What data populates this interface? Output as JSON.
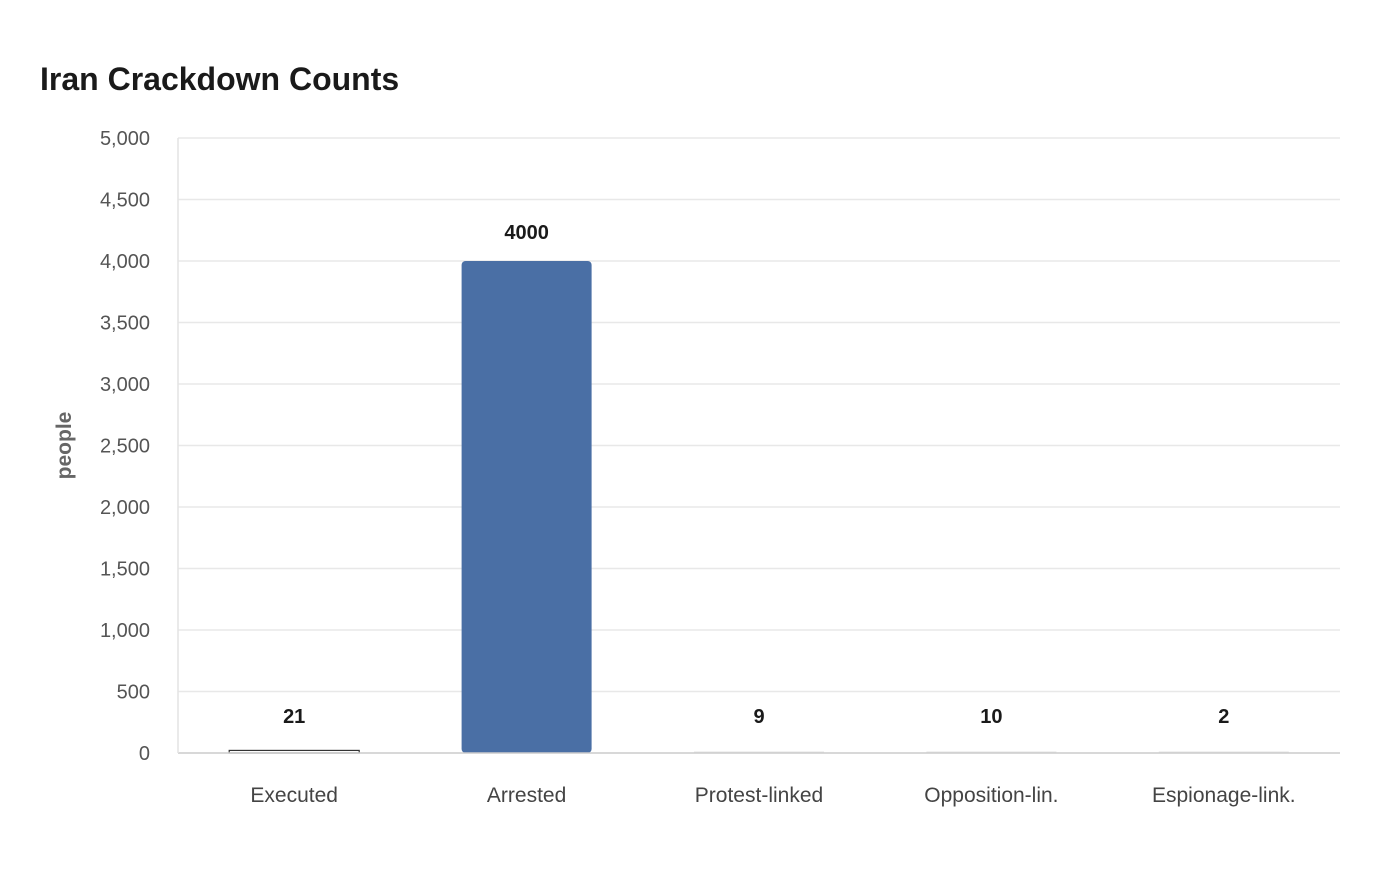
{
  "chart_data": {
    "type": "bar",
    "title": "Iran Crackdown Counts",
    "xlabel": "",
    "ylabel": "people",
    "categories": [
      "Executed",
      "Arrested",
      "Protest-linked",
      "Opposition-lin.",
      "Espionage-link."
    ],
    "values": [
      21,
      4000,
      9,
      10,
      2
    ],
    "value_labels": [
      "21",
      "4000",
      "9",
      "10",
      "2"
    ],
    "ylim": [
      0,
      5000
    ],
    "yticks": [
      0,
      500,
      1000,
      1500,
      2000,
      2500,
      3000,
      3500,
      4000,
      4500,
      5000
    ],
    "ytick_labels": [
      "0",
      "500",
      "1,000",
      "1,500",
      "2,000",
      "2,500",
      "3,000",
      "3,500",
      "4,000",
      "4,500",
      "5,000"
    ],
    "grid": true,
    "legend": "none",
    "colors": {
      "highlight_bar": "#4a6fa5",
      "bar_outline": "#333333",
      "muted_bar": "#e3e3e3",
      "gridline": "#e8e8e8",
      "axis_line": "#cccccc"
    },
    "bar_styles": [
      "outline",
      "highlight",
      "muted",
      "muted",
      "muted"
    ]
  }
}
